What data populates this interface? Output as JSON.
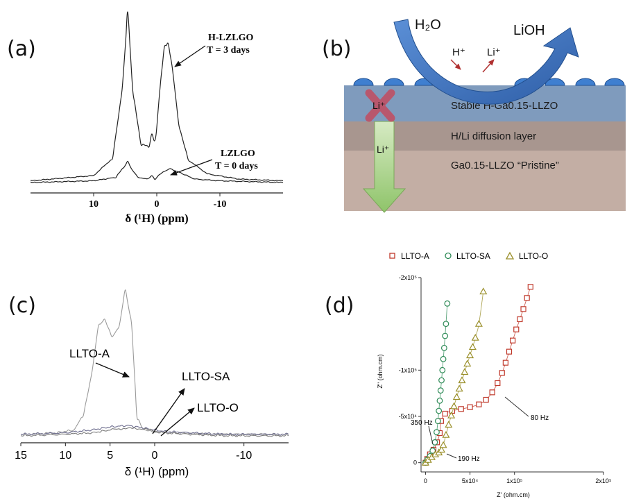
{
  "panels": {
    "a": "(a)",
    "b": "(b)",
    "c": "(c)",
    "d": "(d)"
  },
  "chart_data": [
    {
      "panel": "a",
      "type": "line",
      "title": "",
      "xlabel": "δ (¹H) (ppm)",
      "ylabel": "",
      "xlim": [
        20,
        -20
      ],
      "x_reversed": true,
      "ticks": [
        10,
        0,
        -10
      ],
      "tick_labels": [
        "10",
        "0",
        "-10"
      ],
      "grid": false,
      "series": [
        {
          "name": "H-LZLGO",
          "annotation": [
            "H-LZLGO",
            "T = 3 days"
          ],
          "x": [
            20,
            10,
            7,
            5.5,
            4.6,
            3.8,
            2.5,
            1.2,
            0.8,
            0.4,
            0.1,
            -0.6,
            -1.2,
            -1.8,
            -2.4,
            -3.5,
            -5,
            -8,
            -13,
            -20
          ],
          "y": [
            0.03,
            0.06,
            0.16,
            0.55,
            1.0,
            0.55,
            0.24,
            0.23,
            0.3,
            0.26,
            0.3,
            0.6,
            0.8,
            0.82,
            0.7,
            0.35,
            0.15,
            0.07,
            0.04,
            0.03
          ]
        },
        {
          "name": "LZLGO",
          "annotation": [
            "LZLGO",
            "T = 0 days"
          ],
          "x": [
            20,
            10,
            6.5,
            5.2,
            4.6,
            4.0,
            3.0,
            1.5,
            0.8,
            0.3,
            -0.3,
            -1,
            -2,
            -3.5,
            -6,
            -10,
            -20
          ],
          "y": [
            0.02,
            0.03,
            0.05,
            0.11,
            0.14,
            0.1,
            0.05,
            0.04,
            0.06,
            0.04,
            0.06,
            0.08,
            0.1,
            0.08,
            0.04,
            0.03,
            0.02
          ]
        }
      ]
    },
    {
      "panel": "c",
      "type": "line",
      "title": "",
      "xlabel": "δ (¹H) (ppm)",
      "ylabel": "",
      "xlim": [
        15,
        -15
      ],
      "x_reversed": true,
      "ticks": [
        15,
        10,
        5,
        0,
        -10
      ],
      "tick_labels": [
        "15",
        "10",
        "5",
        "0",
        "-10"
      ],
      "grid": false,
      "series": [
        {
          "name": "LLTO-A",
          "x": [
            15,
            11,
            9,
            8,
            7,
            6.3,
            5.6,
            4.8,
            4.0,
            3.3,
            2.6,
            2.0,
            1.3,
            0.5,
            -1,
            -3,
            -6,
            -10,
            -15
          ],
          "y": [
            0.02,
            0.03,
            0.05,
            0.15,
            0.45,
            0.76,
            0.8,
            0.68,
            0.75,
            1.0,
            0.78,
            0.15,
            0.05,
            0.04,
            0.03,
            0.03,
            0.02,
            0.02,
            0.02
          ]
        },
        {
          "name": "LLTO-SA",
          "x": [
            15,
            10,
            7,
            5,
            3,
            1,
            -1,
            -4,
            -8,
            -15
          ],
          "y": [
            0.02,
            0.03,
            0.05,
            0.07,
            0.08,
            0.06,
            0.04,
            0.03,
            0.02,
            0.02
          ]
        },
        {
          "name": "LLTO-O",
          "x": [
            15,
            10,
            7,
            5,
            3.5,
            2,
            0.5,
            -1,
            -4,
            -8,
            -15
          ],
          "y": [
            0.01,
            0.02,
            0.03,
            0.05,
            0.06,
            0.06,
            0.05,
            0.03,
            0.02,
            0.01,
            0.01
          ]
        }
      ]
    },
    {
      "panel": "d",
      "type": "scatter",
      "title": "",
      "xlabel": "Z' (ohm.cm)",
      "ylabel": "Z\" (ohm.cm)",
      "xlim": [
        -5000,
        200000
      ],
      "ylim": [
        -10000,
        200000
      ],
      "x_ticks": [
        0,
        50000,
        100000,
        200000
      ],
      "x_tick_labels": [
        "0",
        "5x10⁴",
        "1x10⁵",
        "2x10⁵"
      ],
      "y_ticks": [
        0,
        50000,
        100000,
        200000
      ],
      "y_tick_labels": [
        "0",
        "-5x10⁴",
        "-1x10⁵",
        "-2x10⁵"
      ],
      "legend_position": "top",
      "grid": false,
      "annotations": [
        "350 Hz",
        "190 Hz",
        "80 Hz"
      ],
      "series": [
        {
          "name": "LLTO-A",
          "color": "#c0392b",
          "marker": "square",
          "x": [
            0,
            2000,
            5000,
            9000,
            13000,
            16000,
            17500,
            22000,
            30000,
            40000,
            50000,
            60000,
            68000,
            75000,
            81000,
            86000,
            90000,
            94000,
            98000,
            102000,
            106000,
            110000,
            114000,
            118000
          ],
          "y": [
            0,
            4000,
            9000,
            14000,
            22000,
            32000,
            45000,
            53000,
            56000,
            58000,
            60000,
            63000,
            68000,
            76000,
            86000,
            97000,
            108000,
            120000,
            132000,
            144000,
            155000,
            166000,
            178000,
            190000
          ]
        },
        {
          "name": "LLTO-SA",
          "color": "#2e8b57",
          "marker": "circle",
          "x": [
            0,
            2000,
            5000,
            8000,
            10500,
            12500,
            14000,
            15000,
            16000,
            17000,
            18000,
            19000,
            20000,
            21000,
            22000,
            23000,
            24500
          ],
          "y": [
            0,
            3000,
            7000,
            13000,
            22000,
            33000,
            45000,
            56000,
            67000,
            78000,
            89000,
            100000,
            112000,
            124000,
            137000,
            150000,
            172000
          ]
        },
        {
          "name": "LLTO-O",
          "color": "#9a8f2a",
          "marker": "triangle",
          "x": [
            0,
            3000,
            7000,
            11000,
            15000,
            18000,
            20000,
            23000,
            26000,
            29000,
            32000,
            35000,
            38000,
            41000,
            44000,
            47000,
            50000,
            53000,
            56000,
            60000,
            65000
          ],
          "y": [
            0,
            3000,
            6000,
            9000,
            11000,
            14000,
            19000,
            30000,
            41000,
            51000,
            61000,
            71000,
            80000,
            89000,
            98000,
            107000,
            116000,
            125000,
            135000,
            150000,
            185000
          ]
        }
      ]
    }
  ],
  "diagram_b": {
    "water_label": "H₂O",
    "lioh_label": "LiOH",
    "h_plus": "H⁺",
    "li_plus_out": "Li⁺",
    "li_plus_blocked": "Li⁺",
    "li_plus_down": "Li⁺",
    "layers": [
      {
        "label": "Stable H-Ga0.15-LLZO",
        "color": "#7f9bbd"
      },
      {
        "label": "H/Li diffusion layer",
        "color": "#a8968f"
      },
      {
        "label": "Ga0.15-LLZO “Pristine”",
        "color": "#c3aea4"
      }
    ]
  }
}
